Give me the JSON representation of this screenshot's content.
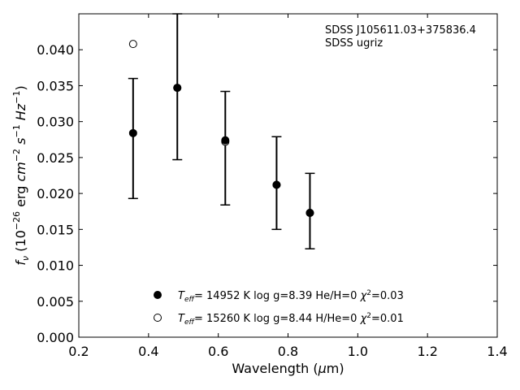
{
  "chart_data": {
    "type": "scatter",
    "annotation_lines": [
      "SDSS J105611.03+375836.4",
      "SDSS ugriz"
    ],
    "xlabel": "Wavelength (μm)",
    "ylabel": "fν (10⁻²⁶ erg cm⁻² s⁻¹ Hz⁻¹)",
    "xlim": [
      0.2,
      1.4
    ],
    "ylim": [
      0.0,
      0.045
    ],
    "xticks": [
      "0.2",
      "0.4",
      "0.6",
      "0.8",
      "1.0",
      "1.2",
      "1.4"
    ],
    "yticks": [
      "0.000",
      "0.005",
      "0.010",
      "0.015",
      "0.020",
      "0.025",
      "0.030",
      "0.035",
      "0.040"
    ],
    "grid": false,
    "legend_position": "bottom-center",
    "observed": {
      "x": [
        0.3557,
        0.4825,
        0.6201,
        0.7672,
        0.8628
      ],
      "y": [
        0.0284,
        0.0347,
        0.0274,
        0.0213,
        0.0174
      ],
      "err_low": [
        0.0193,
        0.0247,
        0.0184,
        0.015,
        0.0123
      ],
      "err_high": [
        0.036,
        0.045,
        0.0342,
        0.0279,
        0.0228
      ]
    },
    "series": [
      {
        "name": "T_eff= 14952 K  log g=8.39  He/H=0  χ²=0.03",
        "marker": "filled-circle",
        "x": [
          0.3557,
          0.4825,
          0.6201,
          0.7672,
          0.8628
        ],
        "y": [
          0.0284,
          0.0347,
          0.0274,
          0.0212,
          0.0173
        ]
      },
      {
        "name": "T_eff= 15260 K  log g=8.44  H/He=0  χ²=0.01",
        "marker": "open-circle",
        "x": [
          0.3557,
          0.4825,
          0.6201,
          0.7672,
          0.8628
        ],
        "y": [
          0.0408,
          0.0347,
          0.0272,
          0.0212,
          0.0173
        ]
      }
    ]
  }
}
